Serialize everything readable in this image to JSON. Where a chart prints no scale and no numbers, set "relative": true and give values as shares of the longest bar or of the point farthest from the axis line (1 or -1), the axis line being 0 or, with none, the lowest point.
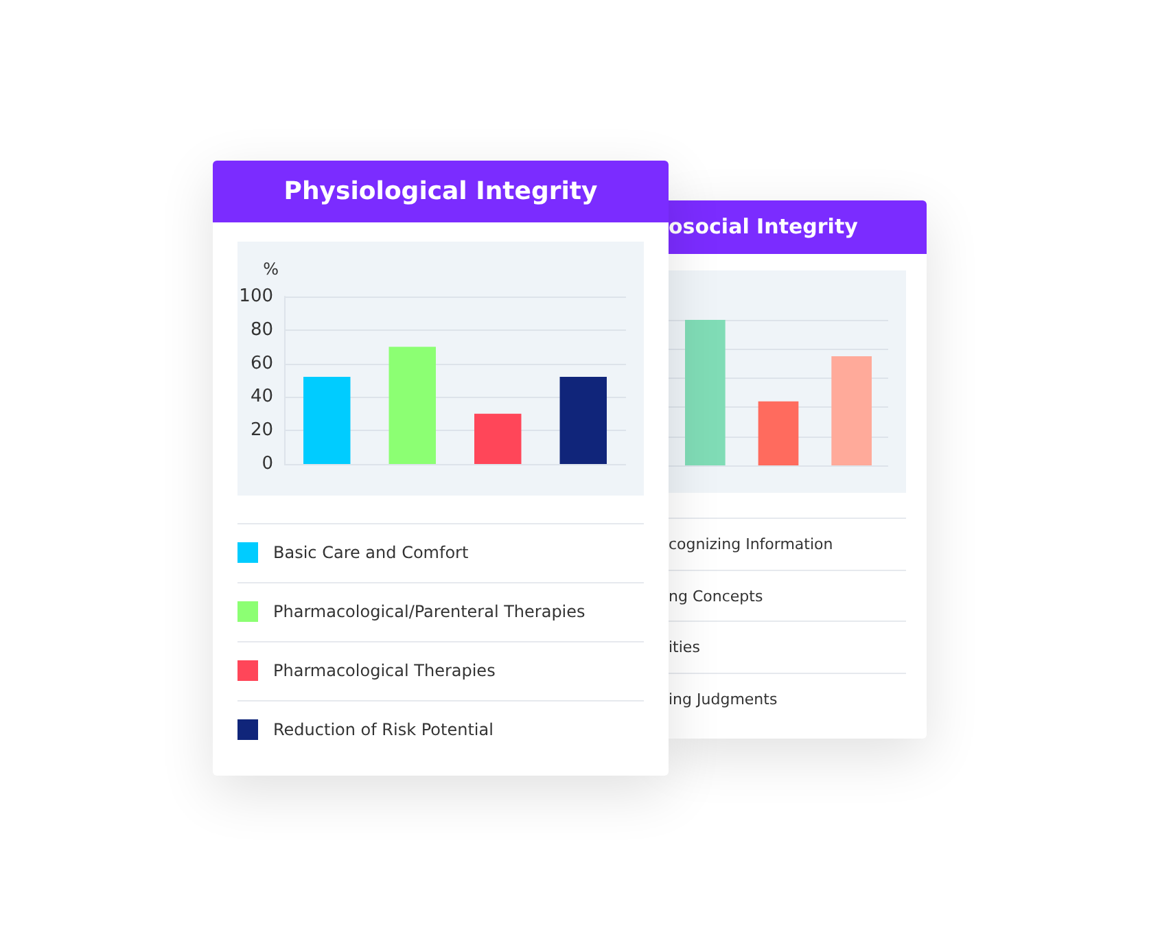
{
  "chart_data": [
    {
      "type": "bar",
      "title": "Physiological Integrity",
      "ylabel": "%",
      "categories": [
        null,
        null,
        null,
        null
      ],
      "series": [
        {
          "name": "Basic Care and Comfort",
          "color": "#00ccff",
          "values": [
            52,
            null,
            null,
            null
          ]
        },
        {
          "name": "Pharmacological/Parenteral Therapies",
          "color": "#8cff73",
          "values": [
            null,
            70,
            null,
            null
          ]
        },
        {
          "name": "Pharmacological Therapies",
          "color": "#ff4659",
          "values": [
            null,
            null,
            30,
            null
          ]
        },
        {
          "name": "Reduction of Risk Potential",
          "color": "#10257a",
          "values": [
            null,
            null,
            null,
            52
          ]
        }
      ],
      "ylim": [
        0,
        100
      ],
      "yticks": [
        0,
        20,
        40,
        60,
        80,
        100
      ],
      "grid": "y",
      "legend": "bottom",
      "tick_labels": "y"
    },
    {
      "type": "bar",
      "title": "osocial Integrity",
      "categories": [
        null,
        null,
        null
      ],
      "values": [
        1,
        0.44,
        0.75
      ],
      "colors": [
        "#80dcb6",
        "#ff6b5e",
        "#ffaa9a"
      ],
      "relative": true,
      "grid": "y",
      "tick_labels": false,
      "annotations": [
        "cognizing Information",
        "ng Concepts",
        "ities",
        "ing Judgments"
      ]
    }
  ]
}
